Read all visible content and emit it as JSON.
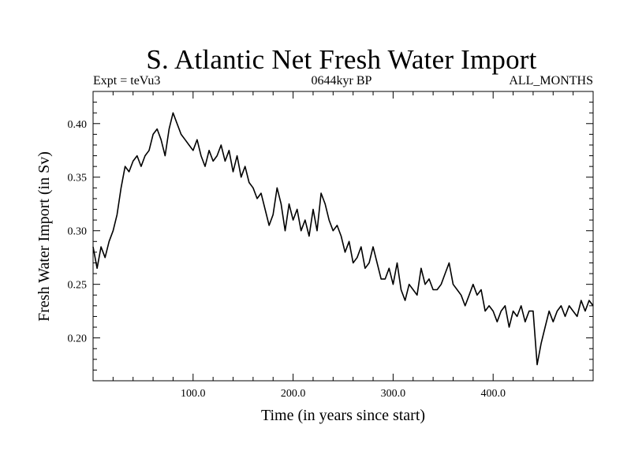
{
  "chart_data": {
    "type": "line",
    "title": "S. Atlantic Net Fresh Water Import",
    "subtitle_left": "Expt = teVu3",
    "subtitle_center": "0644kyr BP",
    "subtitle_right": "ALL_MONTHS",
    "xlabel": "Time (in years since start)",
    "ylabel": "Fresh Water Import (in Sv)",
    "xlim": [
      0,
      500
    ],
    "ylim": [
      0.16,
      0.43
    ],
    "xticks": [
      100,
      200,
      300,
      400
    ],
    "xtick_labels": [
      "100.0",
      "200.0",
      "300.0",
      "400.0"
    ],
    "yticks": [
      0.2,
      0.25,
      0.3,
      0.35,
      0.4
    ],
    "ytick_labels": [
      "0.20",
      "0.25",
      "0.30",
      "0.35",
      "0.40"
    ],
    "grid": false,
    "series": [
      {
        "color": "#000000",
        "x": [
          0,
          4,
          8,
          12,
          16,
          20,
          24,
          28,
          32,
          36,
          40,
          44,
          48,
          52,
          56,
          60,
          64,
          68,
          72,
          76,
          80,
          84,
          88,
          92,
          96,
          100,
          104,
          108,
          112,
          116,
          120,
          124,
          128,
          132,
          136,
          140,
          144,
          148,
          152,
          156,
          160,
          164,
          168,
          172,
          176,
          180,
          184,
          188,
          192,
          196,
          200,
          204,
          208,
          212,
          216,
          220,
          224,
          228,
          232,
          236,
          240,
          244,
          248,
          252,
          256,
          260,
          264,
          268,
          272,
          276,
          280,
          284,
          288,
          292,
          296,
          300,
          304,
          308,
          312,
          316,
          320,
          324,
          328,
          332,
          336,
          340,
          344,
          348,
          352,
          356,
          360,
          364,
          368,
          372,
          376,
          380,
          384,
          388,
          392,
          396,
          400,
          404,
          408,
          412,
          416,
          420,
          424,
          428,
          432,
          436,
          440,
          444,
          448,
          452,
          456,
          460,
          464,
          468,
          472,
          476,
          480,
          484,
          488,
          492,
          496,
          500
        ],
        "y": [
          0.285,
          0.265,
          0.285,
          0.275,
          0.29,
          0.3,
          0.315,
          0.34,
          0.36,
          0.355,
          0.365,
          0.37,
          0.36,
          0.37,
          0.375,
          0.39,
          0.395,
          0.385,
          0.37,
          0.395,
          0.41,
          0.4,
          0.39,
          0.385,
          0.38,
          0.375,
          0.385,
          0.37,
          0.36,
          0.375,
          0.365,
          0.37,
          0.38,
          0.365,
          0.375,
          0.355,
          0.37,
          0.35,
          0.36,
          0.345,
          0.34,
          0.33,
          0.335,
          0.32,
          0.305,
          0.315,
          0.34,
          0.325,
          0.3,
          0.325,
          0.31,
          0.32,
          0.3,
          0.31,
          0.295,
          0.32,
          0.3,
          0.335,
          0.325,
          0.31,
          0.3,
          0.305,
          0.295,
          0.28,
          0.29,
          0.27,
          0.275,
          0.285,
          0.265,
          0.27,
          0.285,
          0.27,
          0.255,
          0.255,
          0.265,
          0.25,
          0.27,
          0.245,
          0.235,
          0.25,
          0.245,
          0.24,
          0.265,
          0.25,
          0.255,
          0.245,
          0.245,
          0.25,
          0.26,
          0.27,
          0.25,
          0.245,
          0.24,
          0.23,
          0.24,
          0.25,
          0.24,
          0.245,
          0.225,
          0.23,
          0.225,
          0.215,
          0.225,
          0.23,
          0.21,
          0.225,
          0.22,
          0.23,
          0.215,
          0.225,
          0.225,
          0.175,
          0.195,
          0.21,
          0.225,
          0.215,
          0.225,
          0.23,
          0.22,
          0.23,
          0.225,
          0.22,
          0.235,
          0.225,
          0.235,
          0.23
        ]
      }
    ]
  }
}
